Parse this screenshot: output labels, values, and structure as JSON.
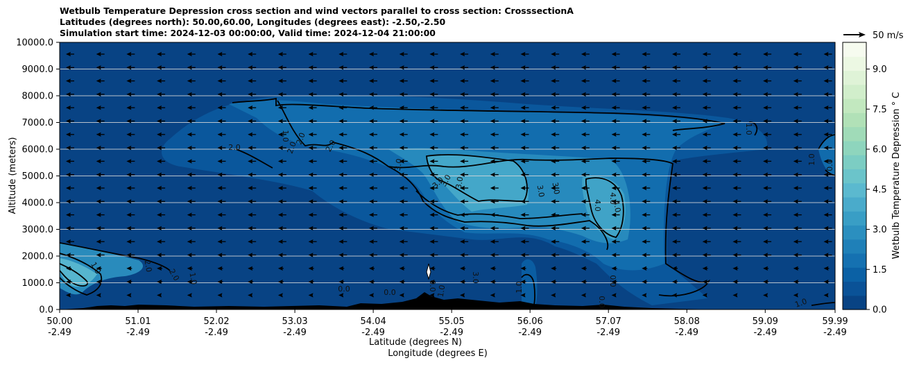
{
  "chart_data": {
    "type": "contour",
    "title_lines": [
      "Wetbulb Temperature Depression cross section and wind vectors parallel to cross section: CrosssectionA",
      "Latitudes (degrees north): 50.00,60.00, Longitudes (degrees east): -2.50,-2.50",
      "Simulation start time: 2024-12-03 00:00:00, Valid time: 2024-12-04 21:00:00"
    ],
    "ylabel": "Altitude (meters)",
    "xlabel": "Latitude (degrees N)",
    "xlabel2": "Longitude (degrees E)",
    "ylim": [
      0,
      10000
    ],
    "xlim": [
      50.0,
      59.99
    ],
    "y_ticks": [
      "0.0",
      "1000.0",
      "2000.0",
      "3000.0",
      "4000.0",
      "5000.0",
      "6000.0",
      "7000.0",
      "8000.0",
      "9000.0",
      "10000.0"
    ],
    "x_ticks": [
      {
        "lat": "50.00",
        "lon": "-2.49"
      },
      {
        "lat": "51.01",
        "lon": "-2.49"
      },
      {
        "lat": "52.02",
        "lon": "-2.49"
      },
      {
        "lat": "53.03",
        "lon": "-2.49"
      },
      {
        "lat": "54.04",
        "lon": "-2.49"
      },
      {
        "lat": "55.05",
        "lon": "-2.49"
      },
      {
        "lat": "56.06",
        "lon": "-2.49"
      },
      {
        "lat": "57.07",
        "lon": "-2.49"
      },
      {
        "lat": "58.08",
        "lon": "-2.49"
      },
      {
        "lat": "59.09",
        "lon": "-2.49"
      },
      {
        "lat": "59.99",
        "lon": "-2.49"
      }
    ],
    "colorbar": {
      "label": "Wetbulb Temperature Depression $^\\circ$C",
      "label_display": "Wetbulb Temperature Depression ° C",
      "range": [
        0,
        10
      ],
      "ticks": [
        "0.0",
        "1.5",
        "3.0",
        "4.5",
        "6.0",
        "7.5",
        "9.0"
      ],
      "colors": [
        "#084384",
        "#0a5297",
        "#0b61a5",
        "#1571b1",
        "#1f80b8",
        "#2b8fbf",
        "#399ec5",
        "#4aabcb",
        "#5bb9cf",
        "#6bc4ca",
        "#7ccdc3",
        "#8ed5bd",
        "#a0dbb8",
        "#b1e1b7",
        "#c2e8bf",
        "#d1eecb",
        "#dff3d7",
        "#ecf8e3",
        "#f6fbef"
      ]
    },
    "wind_key": {
      "label": "50 m/s"
    },
    "grid": "horizontal",
    "contour_labels": [
      "1.0",
      "2.0",
      "2.0",
      "2.0",
      "2.0",
      "3.0",
      "3.0",
      "3.0",
      "3.0",
      "3.0",
      "4.0",
      "4.0",
      "4.0",
      "3.0",
      "0.0",
      "0.0",
      "0.0",
      "1.0",
      "1.0",
      "1.0",
      "1.0",
      "0.0",
      "0.0",
      "0.0",
      "3.0",
      "2.0",
      "2.0",
      "1.0",
      "1.0",
      "1.0"
    ]
  }
}
